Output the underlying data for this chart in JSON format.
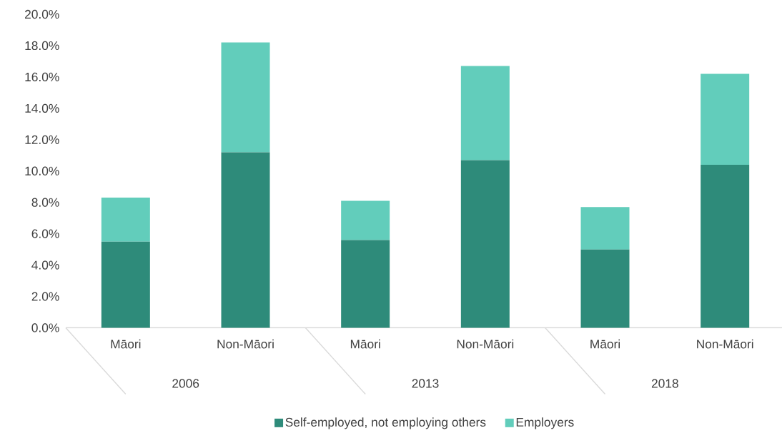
{
  "chart_data": {
    "type": "bar",
    "stacked": true,
    "categories": [
      "Māori",
      "Non-Māori",
      "Māori",
      "Non-Māori",
      "Māori",
      "Non-Māori"
    ],
    "series": [
      {
        "name": "Self-employed, not employing others",
        "color": "#2e8b7a",
        "values": [
          5.5,
          11.2,
          5.6,
          10.7,
          5.0,
          10.4
        ]
      },
      {
        "name": "Employers",
        "color": "#62cdbb",
        "values": [
          2.8,
          7.0,
          2.5,
          6.0,
          2.7,
          5.8
        ]
      }
    ],
    "ylim": [
      0,
      20
    ],
    "yticks": [
      {
        "value": 0,
        "label": "0.0%"
      },
      {
        "value": 2,
        "label": "2.0%"
      },
      {
        "value": 4,
        "label": "4.0%"
      },
      {
        "value": 6,
        "label": "6.0%"
      },
      {
        "value": 8,
        "label": "8.0%"
      },
      {
        "value": 10,
        "label": "10.0%"
      },
      {
        "value": 12,
        "label": "12.0%"
      },
      {
        "value": 14,
        "label": "14.0%"
      },
      {
        "value": 16,
        "label": "16.0%"
      },
      {
        "value": 18,
        "label": "18.0%"
      },
      {
        "value": 20,
        "label": "20.0%"
      }
    ],
    "annotations": [
      "2006",
      "2013",
      "2018"
    ],
    "legend": "bottom"
  }
}
